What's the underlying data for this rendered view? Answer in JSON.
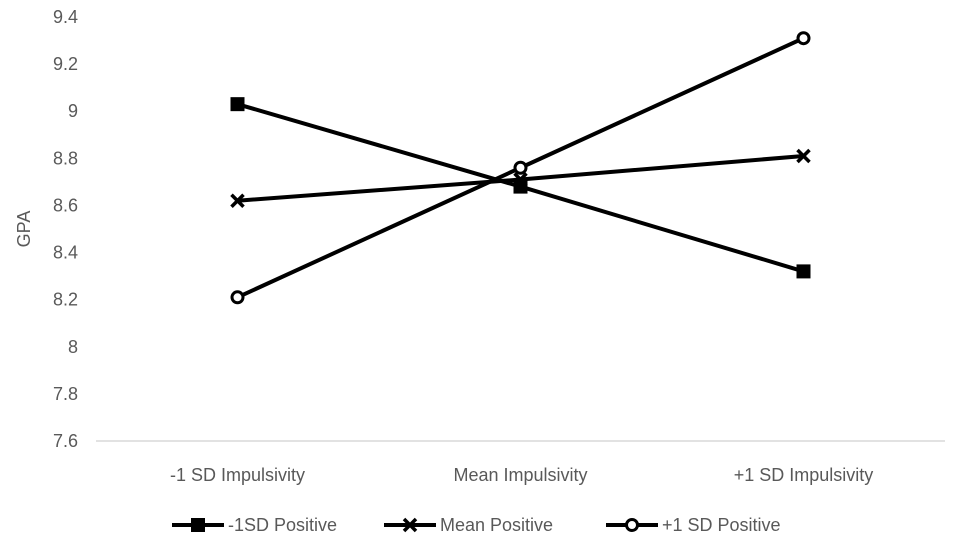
{
  "chart_data": {
    "type": "line",
    "title": "",
    "xlabel": "",
    "ylabel": "GPA",
    "ylim": [
      7.6,
      9.4
    ],
    "yticks": [
      "7.6",
      "7.8",
      "8",
      "8.2",
      "8.4",
      "8.6",
      "8.8",
      "9",
      "9.2",
      "9.4"
    ],
    "categories": [
      "-1 SD Impulsivity",
      "Mean Impulsivity",
      "+1 SD Impulsivity"
    ],
    "grid": false,
    "legend_position": "bottom",
    "series": [
      {
        "name": "-1SD Positive",
        "values": [
          9.03,
          8.68,
          8.32
        ],
        "marker": "square",
        "color": "#000000"
      },
      {
        "name": "Mean Positive",
        "values": [
          8.62,
          8.71,
          8.81
        ],
        "marker": "x",
        "color": "#000000"
      },
      {
        "name": "+1 SD Positive",
        "values": [
          8.21,
          8.76,
          9.31
        ],
        "marker": "circle",
        "color": "#000000"
      }
    ]
  }
}
